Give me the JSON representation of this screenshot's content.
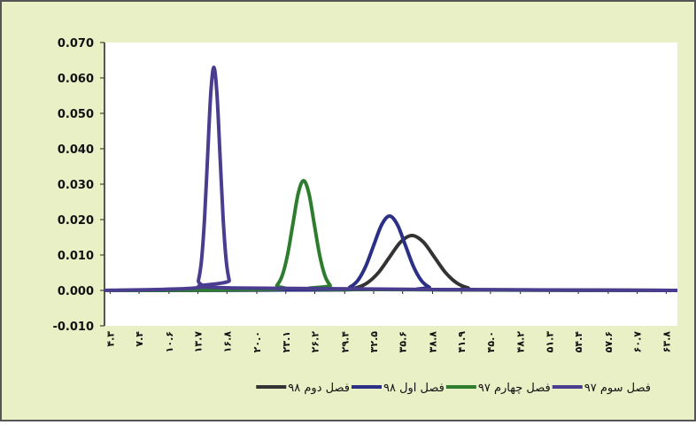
{
  "chart_data": {
    "type": "line",
    "xlim": [
      3.7,
      65.0
    ],
    "xticks": [
      {
        "value": 4.3,
        "label": "۴.۳"
      },
      {
        "value": 7.4,
        "label": "۷.۴"
      },
      {
        "value": 10.6,
        "label": "۱۰.۶"
      },
      {
        "value": 13.7,
        "label": "۱۳.۷"
      },
      {
        "value": 16.8,
        "label": "۱۶.۸"
      },
      {
        "value": 20.0,
        "label": "۲۰.۰"
      },
      {
        "value": 23.1,
        "label": "۲۳.۱"
      },
      {
        "value": 26.2,
        "label": "۲۶.۲"
      },
      {
        "value": 29.4,
        "label": "۲۹.۴"
      },
      {
        "value": 32.5,
        "label": "۳۲.۵"
      },
      {
        "value": 35.6,
        "label": "۳۵.۶"
      },
      {
        "value": 38.8,
        "label": "۳۸.۸"
      },
      {
        "value": 41.9,
        "label": "۴۱.۹"
      },
      {
        "value": 45.0,
        "label": "۴۵.۰"
      },
      {
        "value": 48.2,
        "label": "۴۸.۲"
      },
      {
        "value": 51.3,
        "label": "۵۱.۳"
      },
      {
        "value": 54.4,
        "label": "۵۴.۴"
      },
      {
        "value": 57.6,
        "label": "۵۷.۶"
      },
      {
        "value": 60.7,
        "label": "۶۰.۷"
      },
      {
        "value": 63.8,
        "label": "۶۳.۸"
      }
    ],
    "ylim": [
      -0.01,
      0.07
    ],
    "yticks": [
      {
        "value": -0.01,
        "label": "-0.010"
      },
      {
        "value": 0,
        "label": "0.000"
      },
      {
        "value": 0.01,
        "label": "0.010"
      },
      {
        "value": 0.02,
        "label": "0.020"
      },
      {
        "value": 0.03,
        "label": "0.030"
      },
      {
        "value": 0.04,
        "label": "0.040"
      },
      {
        "value": 0.05,
        "label": "0.050"
      },
      {
        "value": 0.06,
        "label": "0.060"
      },
      {
        "value": 0.07,
        "label": "0.070"
      }
    ],
    "series": [
      {
        "name": "فصل سوم ۹۷",
        "color": "#4a3d8f",
        "x": [
          3.7,
          13.42,
          13.75,
          14.08,
          14.41,
          14.74,
          15.07,
          15.4,
          15.73,
          16.06,
          16.39,
          16.72,
          17.05,
          17.38,
          65.0
        ],
        "values": [
          0,
          0.0007,
          0.0028,
          0.0085,
          0.0205,
          0.0382,
          0.0556,
          0.063,
          0.0556,
          0.0382,
          0.0205,
          0.0085,
          0.0028,
          0.0007,
          0
        ]
      },
      {
        "name": "فصل چهارم ۹۷",
        "color": "#2e7d2e",
        "x": [
          3.7,
          21.58,
          22.15,
          22.72,
          23.29,
          23.86,
          24.43,
          25.0,
          25.57,
          26.14,
          26.71,
          27.28,
          27.85,
          28.42,
          65.0
        ],
        "values": [
          0,
          0.0003,
          0.0014,
          0.0042,
          0.0101,
          0.0188,
          0.0274,
          0.031,
          0.0274,
          0.0188,
          0.0101,
          0.0042,
          0.0014,
          0.0003,
          0
        ]
      },
      {
        "name": "فصل اول ۹۸",
        "color": "#2b2f86",
        "x": [
          3.7,
          29.1,
          29.95,
          30.8,
          31.65,
          32.5,
          33.35,
          34.2,
          35.05,
          35.9,
          36.75,
          37.6,
          38.45,
          39.3,
          65.0
        ],
        "values": [
          0,
          0.0002,
          0.0009,
          0.0028,
          0.0068,
          0.0127,
          0.0185,
          0.021,
          0.0185,
          0.0127,
          0.0068,
          0.0028,
          0.0009,
          0.0002,
          0
        ]
      },
      {
        "name": "فصل دوم ۹۸",
        "color": "#333333",
        "x": [
          3.7,
          29.4,
          30.6,
          31.8,
          33.0,
          34.2,
          35.4,
          36.6,
          37.8,
          39.0,
          40.2,
          41.4,
          42.6,
          43.8,
          65.0
        ],
        "values": [
          0,
          0.0002,
          0.0007,
          0.0021,
          0.005,
          0.0094,
          0.0137,
          0.0155,
          0.0137,
          0.0094,
          0.005,
          0.0021,
          0.0007,
          0.0002,
          0
        ]
      }
    ],
    "legend": "bottom",
    "grid": false
  }
}
